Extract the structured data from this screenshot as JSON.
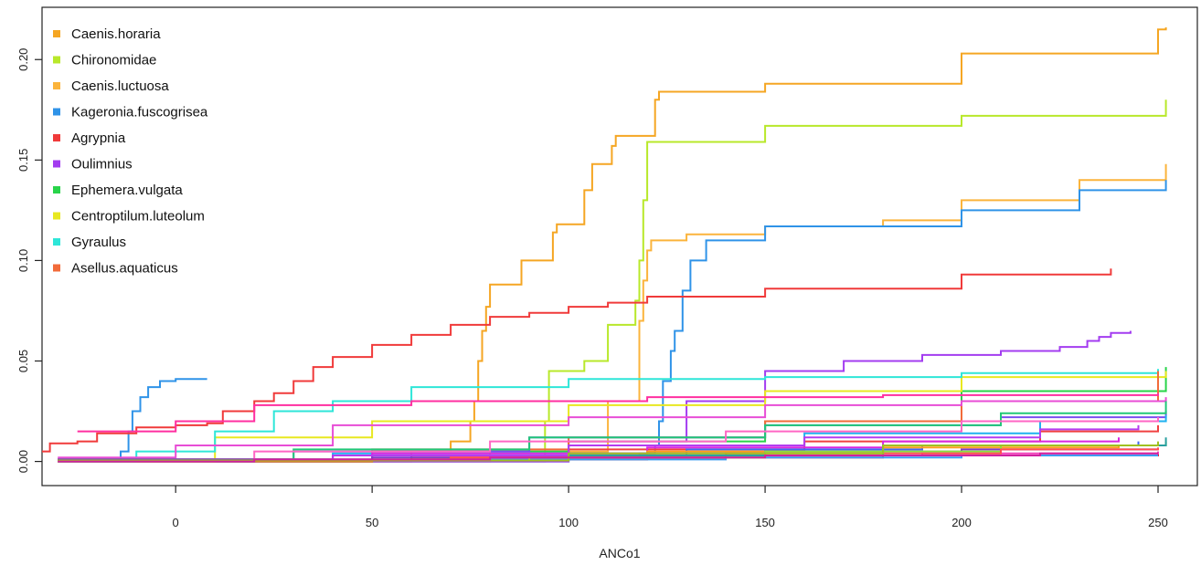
{
  "chart_data": {
    "type": "line",
    "title": "",
    "xlabel": "ANCo1",
    "ylabel": "",
    "xlim": [
      -34,
      260
    ],
    "ylim": [
      -0.012,
      0.226
    ],
    "x_ticks": [
      0,
      50,
      100,
      150,
      200,
      250
    ],
    "y_ticks": [
      0.0,
      0.05,
      0.1,
      0.15,
      0.2
    ],
    "x_tick_labels": [
      "0",
      "50",
      "100",
      "150",
      "200",
      "250"
    ],
    "y_tick_labels": [
      "0.00",
      "0.05",
      "0.10",
      "0.15",
      "0.20"
    ],
    "step": true,
    "grid": false,
    "legend": "top-left",
    "series": [
      {
        "name": "Caenis.horaria",
        "color": "#f5a623",
        "x": [
          -30,
          60,
          70,
          75,
          76,
          77,
          78,
          79,
          80,
          88,
          96,
          97,
          104,
          106,
          111,
          112,
          122,
          123,
          150,
          200,
          250,
          252
        ],
        "y": [
          0,
          0.005,
          0.01,
          0.02,
          0.03,
          0.05,
          0.065,
          0.077,
          0.088,
          0.1,
          0.114,
          0.118,
          0.135,
          0.148,
          0.157,
          0.162,
          0.18,
          0.184,
          0.188,
          0.203,
          0.215,
          0.216
        ]
      },
      {
        "name": "Chironomidae",
        "color": "#b8e82a",
        "x": [
          -30,
          94,
          95,
          104,
          110,
          117,
          118,
          119,
          120,
          150,
          200,
          252
        ],
        "y": [
          0,
          0.02,
          0.045,
          0.05,
          0.068,
          0.08,
          0.1,
          0.13,
          0.159,
          0.167,
          0.172,
          0.18
        ]
      },
      {
        "name": "Caenis.luctuosa",
        "color": "#fbb43c",
        "x": [
          -30,
          80,
          110,
          118,
          119,
          120,
          121,
          130,
          150,
          180,
          200,
          230,
          252
        ],
        "y": [
          0,
          0.005,
          0.03,
          0.07,
          0.09,
          0.105,
          0.11,
          0.113,
          0.117,
          0.12,
          0.13,
          0.14,
          0.148
        ]
      },
      {
        "name": "Kageronia.fuscogrisea",
        "color": "#2f93e8",
        "x": [
          -30,
          -14,
          -12,
          -11,
          -9,
          -7,
          -4,
          0,
          5,
          8
        ],
        "y": [
          0,
          0.005,
          0.015,
          0.025,
          0.032,
          0.037,
          0.04,
          0.041,
          0.041,
          0.041
        ]
      },
      {
        "name": "Kageronia.fuscogrisea",
        "color": "#2f93e8",
        "x": [
          -30,
          100,
          118,
          122,
          123,
          124,
          126,
          127,
          129,
          131,
          135,
          150,
          200,
          230,
          252
        ],
        "y": [
          0,
          0.002,
          0.004,
          0.008,
          0.02,
          0.04,
          0.055,
          0.065,
          0.085,
          0.1,
          0.11,
          0.117,
          0.125,
          0.135,
          0.14
        ]
      },
      {
        "name": "Agrypnia",
        "color": "#f03a3a",
        "x": [
          -34,
          -32,
          -25,
          -20,
          -10,
          0,
          8,
          12,
          20,
          25,
          30,
          35,
          40,
          50,
          60,
          70,
          80,
          90,
          100,
          110,
          120,
          150,
          200,
          238
        ],
        "y": [
          0.005,
          0.009,
          0.01,
          0.014,
          0.017,
          0.018,
          0.019,
          0.025,
          0.03,
          0.034,
          0.04,
          0.047,
          0.052,
          0.058,
          0.063,
          0.068,
          0.072,
          0.074,
          0.077,
          0.079,
          0.082,
          0.086,
          0.093,
          0.096
        ]
      },
      {
        "name": "Oulimnius",
        "color": "#a33cf0",
        "x": [
          -30,
          100,
          130,
          150,
          170,
          190,
          210,
          225,
          232,
          235,
          238,
          243
        ],
        "y": [
          0,
          0.01,
          0.03,
          0.045,
          0.05,
          0.053,
          0.055,
          0.057,
          0.06,
          0.062,
          0.064,
          0.065
        ]
      },
      {
        "name": "Ephemera.vulgata",
        "color": "#29d44a",
        "x": [
          -30,
          50,
          100,
          150,
          200,
          252
        ],
        "y": [
          0,
          0.005,
          0.01,
          0.02,
          0.035,
          0.047
        ]
      },
      {
        "name": "Centroptilum.luteolum",
        "color": "#e8e820",
        "x": [
          -30,
          10,
          50,
          100,
          150,
          200,
          252
        ],
        "y": [
          0,
          0.012,
          0.02,
          0.028,
          0.035,
          0.042,
          0.045
        ]
      },
      {
        "name": "Gyraulus",
        "color": "#2ee6d8",
        "x": [
          -30,
          -10,
          10,
          25,
          40,
          60,
          100,
          150,
          200,
          250
        ],
        "y": [
          0,
          0.005,
          0.015,
          0.025,
          0.03,
          0.037,
          0.041,
          0.042,
          0.044,
          0.046
        ]
      },
      {
        "name": "Asellus.aquaticus",
        "color": "#f26b3a",
        "x": [
          -30,
          50,
          100,
          150,
          200,
          250
        ],
        "y": [
          0,
          0.006,
          0.012,
          0.02,
          0.03,
          0.045
        ]
      },
      {
        "color": "#ff2fa0",
        "x": [
          -25,
          0,
          20,
          60,
          120,
          180,
          250
        ],
        "y": [
          0.015,
          0.02,
          0.028,
          0.03,
          0.032,
          0.033,
          0.034
        ]
      },
      {
        "color": "#e84dd6",
        "x": [
          -30,
          0,
          40,
          100,
          150,
          200,
          252
        ],
        "y": [
          0.002,
          0.008,
          0.018,
          0.022,
          0.028,
          0.03,
          0.032
        ]
      },
      {
        "color": "#7a4df0",
        "x": [
          -30,
          30,
          90,
          150,
          210,
          252
        ],
        "y": [
          0.001,
          0.005,
          0.012,
          0.018,
          0.022,
          0.025
        ]
      },
      {
        "color": "#1fb2f0",
        "x": [
          -30,
          40,
          100,
          160,
          220,
          252
        ],
        "y": [
          0.001,
          0.004,
          0.008,
          0.014,
          0.02,
          0.023
        ]
      },
      {
        "color": "#f04040",
        "x": [
          -30,
          40,
          100,
          160,
          220,
          250
        ],
        "y": [
          0.001,
          0.003,
          0.006,
          0.01,
          0.015,
          0.018
        ]
      },
      {
        "color": "#d926e0",
        "x": [
          -30,
          50,
          120,
          180,
          240
        ],
        "y": [
          0.001,
          0.004,
          0.007,
          0.01,
          0.012
        ]
      },
      {
        "color": "#4068f0",
        "x": [
          -30,
          60,
          130,
          190,
          245
        ],
        "y": [
          0.001,
          0.003,
          0.006,
          0.008,
          0.01
        ]
      },
      {
        "color": "#20c878",
        "x": [
          -30,
          30,
          90,
          150,
          210,
          252
        ],
        "y": [
          0.001,
          0.006,
          0.012,
          0.018,
          0.024,
          0.03
        ]
      },
      {
        "color": "#ff66c4",
        "x": [
          -30,
          20,
          80,
          140,
          200,
          250
        ],
        "y": [
          0.001,
          0.005,
          0.01,
          0.015,
          0.02,
          0.022
        ]
      },
      {
        "color": "#ff9f1a",
        "x": [
          -30,
          60,
          120,
          180,
          240
        ],
        "y": [
          0.001,
          0.002,
          0.005,
          0.007,
          0.008
        ]
      },
      {
        "color": "#7d3cc8",
        "x": [
          -30,
          50,
          100,
          150,
          200,
          250
        ],
        "y": [
          0.001,
          0.002,
          0.004,
          0.005,
          0.006,
          0.006
        ]
      },
      {
        "color": "#e0203c",
        "x": [
          -30,
          60,
          120,
          180,
          250
        ],
        "y": [
          0.0005,
          0.001,
          0.002,
          0.003,
          0.004
        ]
      },
      {
        "color": "#3c9cf0",
        "x": [
          -30,
          80,
          140,
          200,
          250
        ],
        "y": [
          0.0005,
          0.001,
          0.002,
          0.003,
          0.003
        ]
      },
      {
        "color": "#f03cb8",
        "x": [
          -30,
          70,
          130,
          190,
          250
        ],
        "y": [
          0.0005,
          0.002,
          0.003,
          0.004,
          0.005
        ]
      },
      {
        "color": "#8ce03c",
        "x": [
          -30,
          90,
          150,
          210,
          252
        ],
        "y": [
          0.0005,
          0.002,
          0.005,
          0.008,
          0.01
        ]
      },
      {
        "color": "#b43cf0",
        "x": [
          -30,
          40,
          100,
          160,
          220,
          245
        ],
        "y": [
          0.0005,
          0.003,
          0.008,
          0.012,
          0.016,
          0.018
        ]
      },
      {
        "color": "#ff5050",
        "x": [
          -30,
          70,
          140,
          210,
          250
        ],
        "y": [
          0.0005,
          0.002,
          0.004,
          0.006,
          0.007
        ]
      },
      {
        "color": "#2aa0a0",
        "x": [
          -30,
          100,
          180,
          252
        ],
        "y": [
          0.0005,
          0.003,
          0.008,
          0.012
        ]
      },
      {
        "color": "#a0c020",
        "x": [
          -30,
          100,
          180,
          250
        ],
        "y": [
          0.0005,
          0.004,
          0.008,
          0.01
        ]
      },
      {
        "color": "#d020a0",
        "x": [
          -30,
          20,
          80,
          150,
          220,
          250
        ],
        "y": [
          0.0,
          0.001,
          0.002,
          0.003,
          0.004,
          0.004
        ]
      }
    ]
  }
}
